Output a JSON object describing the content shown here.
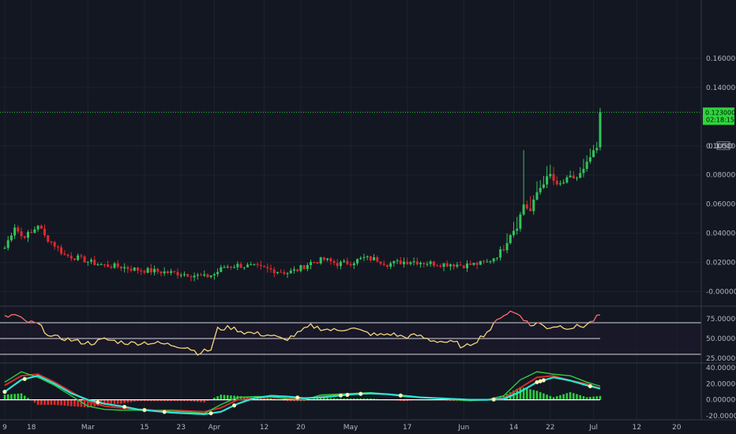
{
  "price_axis": {
    "currency": "USD",
    "top_label": "0.1",
    "ticks": [
      "0.160000",
      "0.140000",
      "0.100000",
      "0.080000",
      "0.060000",
      "0.040000",
      "0.020000",
      "-0.000000"
    ]
  },
  "rsi_axis": {
    "ticks": [
      "75.000000",
      "50.000000",
      "25.000000"
    ]
  },
  "macd_axis": {
    "ticks": [
      "40.000000",
      "20.000000",
      "0.000000",
      "-20.000000"
    ]
  },
  "last_price": {
    "value": "0.123000",
    "countdown": "02:18:15"
  },
  "colors": {
    "background": "#131722",
    "grid": "#1e222d",
    "up": "#26a69a",
    "down": "#ef5350",
    "candle_up": "#33c35a",
    "candle_down": "#e0282e",
    "rsi": "#f5d67a",
    "rsi_hot": "#ff6b6b",
    "macd": "#2ee6d6",
    "signal": "#d62b2b",
    "hist_up": "#2ecc40",
    "hist_down": "#e22a2a",
    "last_price": "#2cd63c",
    "band": "#1f1a2e"
  },
  "chart_data": [
    {
      "type": "candlestick",
      "title": "",
      "x_labels": [
        "9",
        "18",
        "Mar",
        "15",
        "23",
        "Apr",
        "12",
        "20",
        "May",
        "17",
        "Jun",
        "14",
        "22",
        "Jul",
        "12",
        "20"
      ],
      "ylim": [
        -0.01,
        0.2
      ],
      "close_anchors": [
        [
          0,
          0.03
        ],
        [
          3,
          0.045
        ],
        [
          5,
          0.038
        ],
        [
          8,
          0.04
        ],
        [
          10,
          0.046
        ],
        [
          12,
          0.038
        ],
        [
          15,
          0.032
        ],
        [
          18,
          0.025
        ],
        [
          22,
          0.023
        ],
        [
          26,
          0.02
        ],
        [
          30,
          0.018
        ],
        [
          35,
          0.017
        ],
        [
          40,
          0.015
        ],
        [
          45,
          0.014
        ],
        [
          50,
          0.013
        ],
        [
          55,
          0.012
        ],
        [
          60,
          0.01
        ],
        [
          63,
          0.012
        ],
        [
          66,
          0.017
        ],
        [
          70,
          0.018
        ],
        [
          75,
          0.017
        ],
        [
          80,
          0.015
        ],
        [
          85,
          0.013
        ],
        [
          88,
          0.015
        ],
        [
          92,
          0.02
        ],
        [
          96,
          0.022
        ],
        [
          100,
          0.019
        ],
        [
          104,
          0.02
        ],
        [
          108,
          0.023
        ],
        [
          112,
          0.022
        ],
        [
          115,
          0.019
        ],
        [
          118,
          0.02
        ],
        [
          122,
          0.021
        ],
        [
          126,
          0.02
        ],
        [
          130,
          0.019
        ],
        [
          134,
          0.019
        ],
        [
          138,
          0.018
        ],
        [
          142,
          0.019
        ],
        [
          145,
          0.02
        ],
        [
          148,
          0.025
        ],
        [
          150,
          0.03
        ],
        [
          152,
          0.04
        ],
        [
          154,
          0.045
        ],
        [
          156,
          0.06
        ],
        [
          158,
          0.055
        ],
        [
          160,
          0.068
        ],
        [
          162,
          0.075
        ],
        [
          164,
          0.08
        ],
        [
          166,
          0.072
        ],
        [
          168,
          0.075
        ],
        [
          170,
          0.078
        ],
        [
          172,
          0.078
        ],
        [
          174,
          0.083
        ],
        [
          176,
          0.092
        ],
        [
          178,
          0.098
        ],
        [
          179,
          0.123
        ]
      ]
    },
    {
      "type": "line",
      "title": "",
      "ylim": [
        20,
        90
      ],
      "reference_lines": [
        70,
        50,
        30
      ],
      "series": [
        {
          "values_anchors": [
            [
              0,
              77
            ],
            [
              3,
              80
            ],
            [
              6,
              72
            ],
            [
              10,
              68
            ],
            [
              14,
              52
            ],
            [
              18,
              50
            ],
            [
              22,
              46
            ],
            [
              26,
              44
            ],
            [
              30,
              49
            ],
            [
              34,
              46
            ],
            [
              38,
              44
            ],
            [
              42,
              45
            ],
            [
              46,
              44
            ],
            [
              50,
              42
            ],
            [
              55,
              39
            ],
            [
              58,
              32
            ],
            [
              62,
              36
            ],
            [
              64,
              62
            ],
            [
              68,
              64
            ],
            [
              72,
              58
            ],
            [
              76,
              56
            ],
            [
              80,
              54
            ],
            [
              84,
              48
            ],
            [
              88,
              56
            ],
            [
              92,
              66
            ],
            [
              96,
              62
            ],
            [
              100,
              60
            ],
            [
              104,
              64
            ],
            [
              108,
              58
            ],
            [
              112,
              54
            ],
            [
              116,
              56
            ],
            [
              120,
              52
            ],
            [
              124,
              54
            ],
            [
              128,
              48
            ],
            [
              132,
              46
            ],
            [
              136,
              44
            ],
            [
              138,
              38
            ],
            [
              142,
              48
            ],
            [
              146,
              62
            ],
            [
              149,
              78
            ],
            [
              152,
              84
            ],
            [
              155,
              80
            ],
            [
              158,
              66
            ],
            [
              160,
              70
            ],
            [
              163,
              64
            ],
            [
              166,
              66
            ],
            [
              170,
              64
            ],
            [
              174,
              66
            ],
            [
              176,
              70
            ],
            [
              179,
              80
            ]
          ]
        }
      ]
    },
    {
      "type": "line",
      "title": "",
      "ylim": [
        -25,
        45
      ],
      "series": [
        {
          "values_anchors": [
            [
              0,
              22
            ],
            [
              5,
              35
            ],
            [
              10,
              28
            ],
            [
              15,
              18
            ],
            [
              20,
              5
            ],
            [
              25,
              -8
            ],
            [
              30,
              -12
            ],
            [
              35,
              -13
            ],
            [
              40,
              -13
            ],
            [
              45,
              -14
            ],
            [
              50,
              -14
            ],
            [
              55,
              -15
            ],
            [
              60,
              -17
            ],
            [
              65,
              -6
            ],
            [
              70,
              3
            ],
            [
              75,
              4
            ],
            [
              80,
              4
            ],
            [
              85,
              1
            ],
            [
              90,
              0
            ],
            [
              95,
              6
            ],
            [
              100,
              7
            ],
            [
              105,
              8
            ],
            [
              110,
              9
            ],
            [
              115,
              7
            ],
            [
              120,
              4
            ],
            [
              125,
              3
            ],
            [
              130,
              2
            ],
            [
              135,
              0
            ],
            [
              140,
              -1
            ],
            [
              145,
              0
            ],
            [
              150,
              5
            ],
            [
              155,
              25
            ],
            [
              160,
              35
            ],
            [
              165,
              32
            ],
            [
              170,
              30
            ],
            [
              175,
              22
            ],
            [
              179,
              17
            ]
          ]
        },
        {
          "values_anchors": [
            [
              0,
              18
            ],
            [
              5,
              30
            ],
            [
              10,
              32
            ],
            [
              15,
              22
            ],
            [
              20,
              10
            ],
            [
              25,
              -2
            ],
            [
              30,
              -8
            ],
            [
              35,
              -10
            ],
            [
              40,
              -12
            ],
            [
              45,
              -13
            ],
            [
              50,
              -13
            ],
            [
              55,
              -14
            ],
            [
              60,
              -15
            ],
            [
              65,
              -10
            ],
            [
              70,
              0
            ],
            [
              75,
              2
            ],
            [
              80,
              3
            ],
            [
              85,
              2
            ],
            [
              90,
              1
            ],
            [
              95,
              4
            ],
            [
              100,
              6
            ],
            [
              105,
              7
            ],
            [
              110,
              8
            ],
            [
              115,
              7
            ],
            [
              120,
              5
            ],
            [
              125,
              3
            ],
            [
              130,
              2
            ],
            [
              135,
              1
            ],
            [
              140,
              0
            ],
            [
              145,
              0
            ],
            [
              150,
              2
            ],
            [
              155,
              15
            ],
            [
              160,
              28
            ],
            [
              165,
              30
            ],
            [
              170,
              24
            ],
            [
              175,
              20
            ],
            [
              179,
              14
            ]
          ]
        },
        {
          "values_anchors": [
            [
              0,
              10
            ],
            [
              5,
              25
            ],
            [
              10,
              30
            ],
            [
              15,
              20
            ],
            [
              20,
              8
            ],
            [
              25,
              0
            ],
            [
              30,
              -5
            ],
            [
              35,
              -8
            ],
            [
              40,
              -12
            ],
            [
              45,
              -14
            ],
            [
              50,
              -16
            ],
            [
              55,
              -17
            ],
            [
              60,
              -18
            ],
            [
              65,
              -15
            ],
            [
              70,
              -5
            ],
            [
              75,
              2
            ],
            [
              80,
              5
            ],
            [
              85,
              4
            ],
            [
              90,
              2
            ],
            [
              95,
              3
            ],
            [
              100,
              5
            ],
            [
              105,
              7
            ],
            [
              110,
              8
            ],
            [
              115,
              7
            ],
            [
              120,
              5
            ],
            [
              125,
              3
            ],
            [
              130,
              2
            ],
            [
              135,
              1
            ],
            [
              140,
              0
            ],
            [
              145,
              0
            ],
            [
              150,
              1
            ],
            [
              155,
              10
            ],
            [
              160,
              22
            ],
            [
              165,
              28
            ],
            [
              170,
              24
            ],
            [
              175,
              18
            ],
            [
              179,
              14
            ]
          ]
        }
      ]
    }
  ]
}
